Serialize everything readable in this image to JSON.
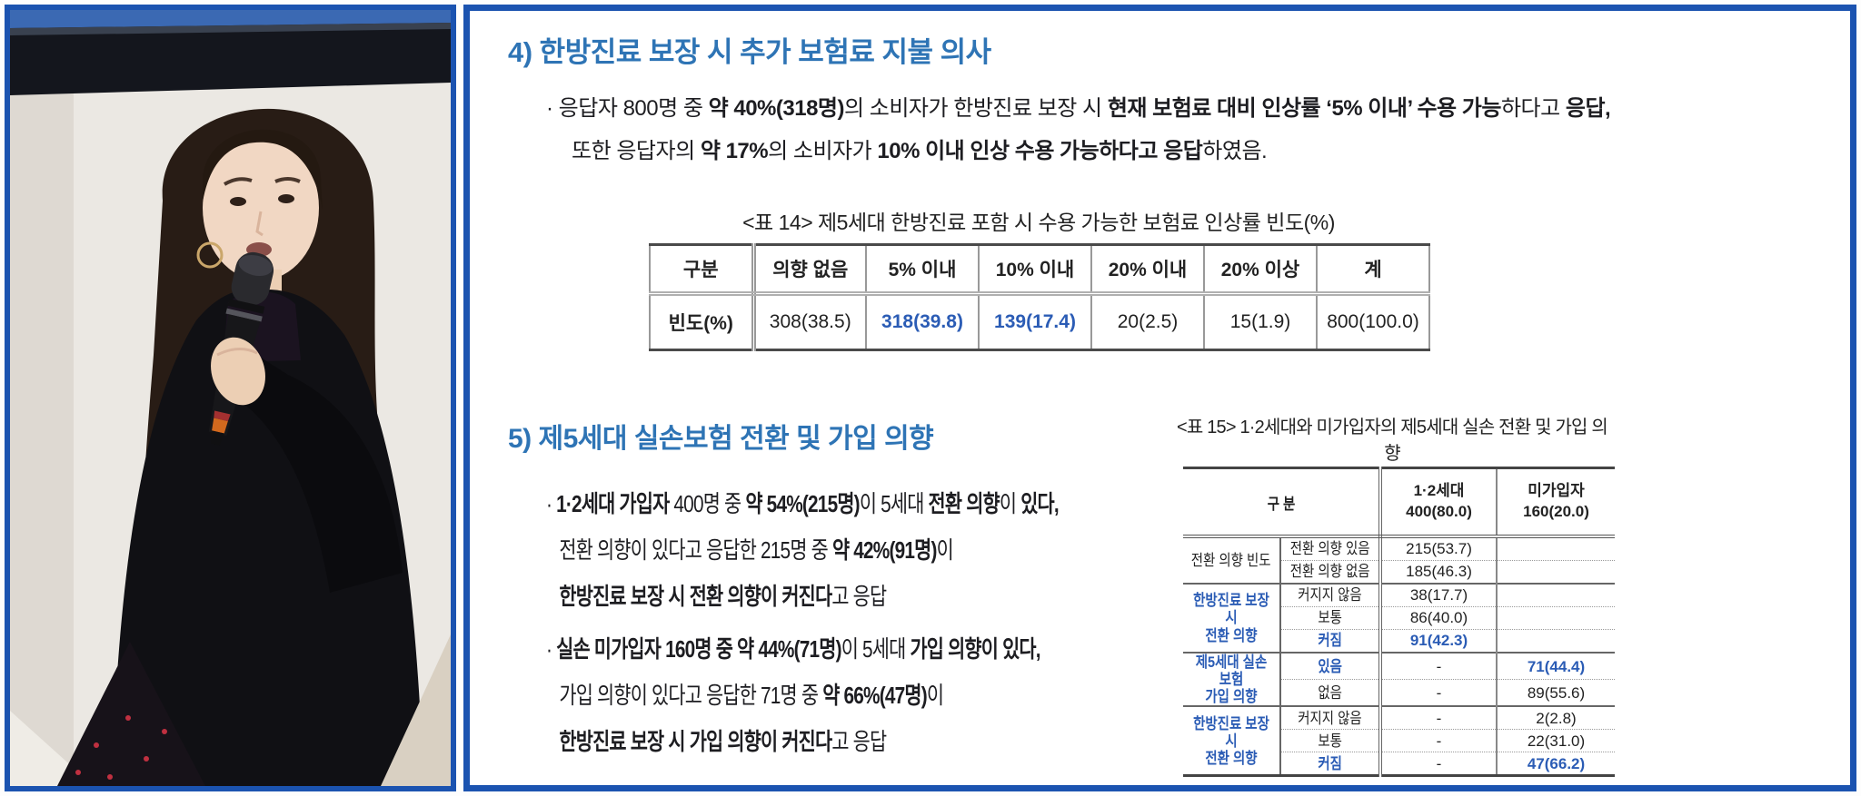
{
  "colors": {
    "frame_blue": "#1b53b0",
    "heading_blue": "#2e74b5",
    "highlight_blue": "#2b5cb5"
  },
  "section4": {
    "heading": "4) 한방진료 보장 시 추가 보험료 지불 의사",
    "lines": [
      [
        {
          "t": "· 응답자 800명 중 "
        },
        {
          "t": "약 40%(318명)",
          "b": true
        },
        {
          "t": "의 소비자가 한방진료 보장 시 "
        },
        {
          "t": "현재 보험료 대비 인상률 ‘5% 이내’ 수용 가능",
          "b": true
        },
        {
          "t": "하다고 "
        },
        {
          "t": "응답,",
          "b": true
        }
      ],
      [
        {
          "t": "또한 응답자의 "
        },
        {
          "t": "약 17%",
          "b": true
        },
        {
          "t": "의 소비자가 "
        },
        {
          "t": "10% 이내 인상 수용 가능하다고 응답",
          "b": true
        },
        {
          "t": "하였음."
        }
      ]
    ]
  },
  "table14": {
    "caption": "<표 14> 제5세대 한방진료 포함 시 수용 가능한 보험료 인상률 빈도(%)",
    "headers": [
      "구분",
      "의향 없음",
      "5% 이내",
      "10% 이내",
      "20% 이내",
      "20% 이상",
      "계"
    ],
    "row_label": "빈도(%)",
    "values": [
      "308(38.5)",
      "318(39.8)",
      "139(17.4)",
      "20(2.5)",
      "15(1.9)",
      "800(100.0)"
    ]
  },
  "section5": {
    "heading": "5) 제5세대 실손보험 전환 및 가입 의향",
    "bullet1": {
      "lines": [
        [
          {
            "t": "· "
          },
          {
            "t": "1·2세대 가입자",
            "b": true
          },
          {
            "t": " 400명 중 "
          },
          {
            "t": "약 54%(215명)",
            "b": true
          },
          {
            "t": "이 5세대 "
          },
          {
            "t": "전환 의향",
            "b": true
          },
          {
            "t": "이 "
          },
          {
            "t": "있다,",
            "b": true
          }
        ],
        [
          {
            "t": "전환 의향이 있다고 응답한 215명 중 "
          },
          {
            "t": "약 42%(91명)",
            "b": true
          },
          {
            "t": "이"
          }
        ],
        [
          {
            "t": "한방진료 보장 시 전환 의향이 커진다",
            "b": true
          },
          {
            "t": "고 응답"
          }
        ]
      ]
    },
    "bullet2": {
      "lines": [
        [
          {
            "t": "· "
          },
          {
            "t": "실손 미가입자 160명 중 약 44%(71명)",
            "b": true
          },
          {
            "t": "이 5세대 "
          },
          {
            "t": "가입 의향이 있다,",
            "b": true
          }
        ],
        [
          {
            "t": "가입 의향이 있다고 응답한 71명 중 "
          },
          {
            "t": "약 66%(47명)",
            "b": true
          },
          {
            "t": "이"
          }
        ],
        [
          {
            "t": "한방진료 보장 시 가입 의향이 커진다",
            "b": true
          },
          {
            "t": "고 응답"
          }
        ]
      ]
    }
  },
  "table15": {
    "caption": "<표 15> 1·2세대와 미가입자의 제5세대 실손 전환 및 가입 의향",
    "corner": "구 분",
    "col1": {
      "name": "1·2세대",
      "count": "400(80.0)"
    },
    "col2": {
      "name": "미가입자",
      "count": "160(20.0)"
    },
    "groups": [
      {
        "label": "전환 의향 빈도",
        "rows": [
          {
            "sub": "전환 의향 있음",
            "v1": "215(53.7)",
            "v2": ""
          },
          {
            "sub": "전환 의향 없음",
            "v1": "185(46.3)",
            "v2": ""
          }
        ]
      },
      {
        "label": "한방진료 보장 시\n전환 의향",
        "rows": [
          {
            "sub": "커지지 않음",
            "v1": "38(17.7)",
            "v2": ""
          },
          {
            "sub": "보통",
            "v1": "86(40.0)",
            "v2": ""
          },
          {
            "sub": "커짐",
            "v1": "91(42.3)",
            "v2": ""
          }
        ]
      },
      {
        "label": "제5세대 실손보험\n가입 의향",
        "rows": [
          {
            "sub": "있음",
            "v1": "-",
            "v2": "71(44.4)"
          },
          {
            "sub": "없음",
            "v1": "-",
            "v2": "89(55.6)"
          }
        ]
      },
      {
        "label": "한방진료 보장 시\n전환 의향",
        "rows": [
          {
            "sub": "커지지 않음",
            "v1": "-",
            "v2": "2(2.8)"
          },
          {
            "sub": "보통",
            "v1": "-",
            "v2": "22(31.0)"
          },
          {
            "sub": "커짐",
            "v1": "-",
            "v2": "47(66.2)"
          }
        ]
      }
    ]
  }
}
